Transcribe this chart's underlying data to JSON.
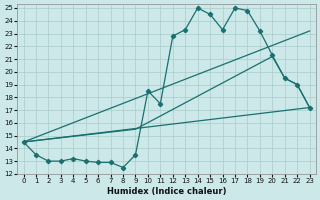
{
  "xlabel": "Humidex (Indice chaleur)",
  "bg_color": "#cce8e8",
  "line_color": "#1a7070",
  "grid_color": "#aacccc",
  "xlim": [
    -0.5,
    23.5
  ],
  "ylim": [
    12,
    25.3
  ],
  "xticks": [
    0,
    1,
    2,
    3,
    4,
    5,
    6,
    7,
    8,
    9,
    10,
    11,
    12,
    13,
    14,
    15,
    16,
    17,
    18,
    19,
    20,
    21,
    22,
    23
  ],
  "yticks": [
    12,
    13,
    14,
    15,
    16,
    17,
    18,
    19,
    20,
    21,
    22,
    23,
    24,
    25
  ],
  "line1_x": [
    0,
    1,
    2,
    3,
    4,
    5,
    6,
    7,
    8,
    9,
    10,
    11,
    12,
    13,
    14,
    15,
    16,
    17,
    18,
    19,
    20,
    21,
    22,
    23
  ],
  "line1_y": [
    14.5,
    13.5,
    13.0,
    13.0,
    13.2,
    13.0,
    12.9,
    12.9,
    12.5,
    13.5,
    18.5,
    17.5,
    22.8,
    23.3,
    25.0,
    24.5,
    23.3,
    25.0,
    24.8,
    23.2,
    21.3,
    19.5,
    19.0,
    17.2
  ],
  "line2_x": [
    0,
    23
  ],
  "line2_y": [
    14.5,
    17.2
  ],
  "line3_x": [
    0,
    9,
    20,
    21,
    22,
    23
  ],
  "line3_y": [
    14.5,
    15.5,
    21.2,
    19.5,
    19.0,
    17.2
  ],
  "line4_x": [
    0,
    23
  ],
  "line4_y": [
    14.5,
    23.2
  ]
}
